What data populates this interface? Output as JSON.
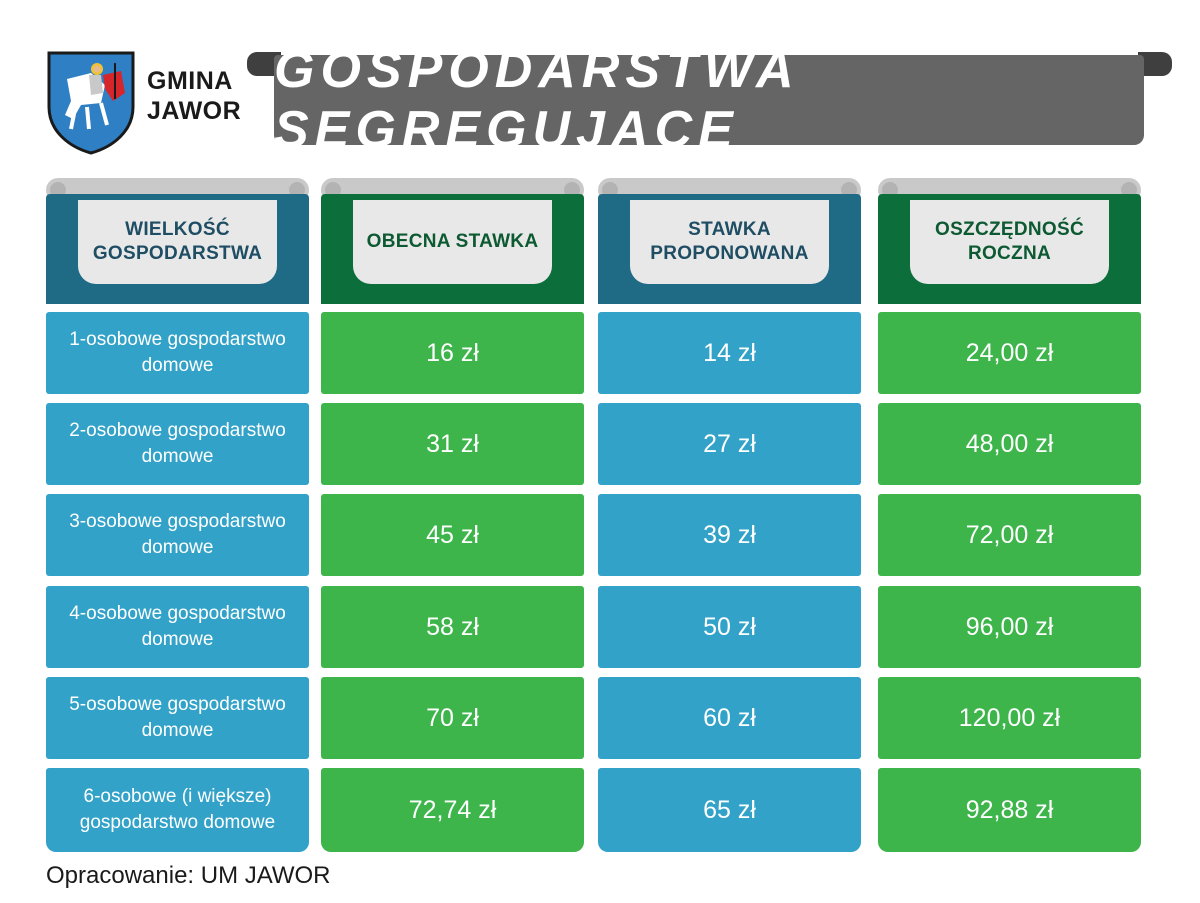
{
  "brand": {
    "line1": "GMINA",
    "line2": "JAWOR"
  },
  "title": "GOSPODARSTWA SEGREGUJĄCE",
  "colors": {
    "blue_cell": "#32a2c8",
    "blue_header": "#1f6a85",
    "green_cell": "#3db54b",
    "green_header": "#0c6e3a",
    "banner": "#656565"
  },
  "columns": [
    {
      "label": "WIELKOŚĆ GOSPODARSTWA",
      "rows": [
        "1-osobowe gospodarstwo domowe",
        "2-osobowe gospodarstwo domowe",
        "3-osobowe gospodarstwo domowe",
        "4-osobowe gospodarstwo domowe",
        "5-osobowe gospodarstwo domowe",
        "6-osobowe (i większe) gospodarstwo domowe"
      ]
    },
    {
      "label": "OBECNA STAWKA",
      "rows": [
        "16 zł",
        "31 zł",
        "45 zł",
        "58 zł",
        "70 zł",
        "72,74 zł"
      ]
    },
    {
      "label": "STAWKA PROPONOWANA",
      "rows": [
        "14 zł",
        "27 zł",
        "39 zł",
        "50 zł",
        "60 zł",
        "65 zł"
      ]
    },
    {
      "label": "OSZCZĘDNOŚĆ ROCZNA",
      "rows": [
        "24,00 zł",
        "48,00 zł",
        "72,00 zł",
        "96,00 zł",
        "120,00 zł",
        "92,88 zł"
      ]
    }
  ],
  "footer": "Opracowanie: UM JAWOR"
}
